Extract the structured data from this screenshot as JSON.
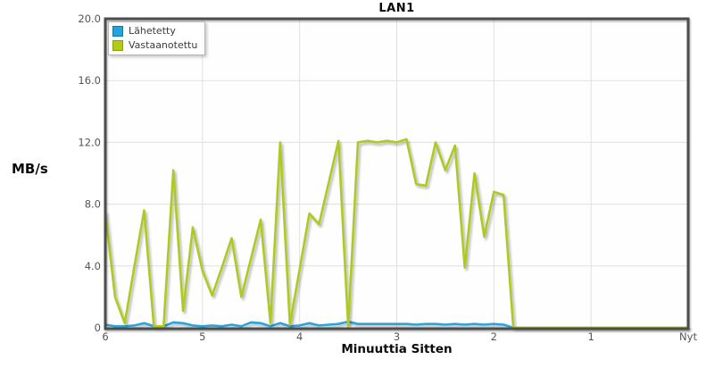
{
  "title": "LAN1",
  "y_axis": {
    "label": "MB/s",
    "tick_labels": [
      "20.0",
      "16.0",
      "12.0",
      "8.0",
      "4.0",
      "0"
    ],
    "tick_values": [
      20,
      16,
      12,
      8,
      4,
      0
    ]
  },
  "x_axis": {
    "label": "Minuuttia Sitten",
    "tick_labels": [
      "6",
      "5",
      "4",
      "3",
      "2",
      "1",
      "Nyt"
    ],
    "tick_values_minutes_ago": [
      6,
      5,
      4,
      3,
      2,
      1,
      0
    ]
  },
  "legend": {
    "items": [
      {
        "label": "Lähetetty",
        "color": "#22a5de",
        "border": "#1377a8"
      },
      {
        "label": "Vastaanotettu",
        "color": "#b2cc16",
        "border": "#86a00e"
      }
    ]
  },
  "colors": {
    "background": "#ffffff",
    "plot_background": "#fefefe",
    "plot_border": "#4d4d4d",
    "gridline": "#e1e1e1",
    "tick_text": "#555555",
    "title_text": "#0a0a0a",
    "sent_line": "#2aa4da",
    "received_line": "#aeca22"
  },
  "chart_data": {
    "type": "line",
    "title": "LAN1",
    "xlabel": "Minuuttia Sitten",
    "ylabel": "MB/s",
    "ylim": [
      0,
      20
    ],
    "xlim_minutes_ago": [
      6,
      0
    ],
    "grid": true,
    "legend_position": "top-left",
    "x_minutes_ago": [
      6.0,
      5.9,
      5.8,
      5.7,
      5.6,
      5.5,
      5.4,
      5.3,
      5.2,
      5.1,
      5.0,
      4.9,
      4.8,
      4.7,
      4.6,
      4.5,
      4.4,
      4.3,
      4.2,
      4.1,
      4.0,
      3.9,
      3.8,
      3.7,
      3.6,
      3.5,
      3.4,
      3.3,
      3.2,
      3.1,
      3.0,
      2.9,
      2.8,
      2.7,
      2.6,
      2.5,
      2.4,
      2.3,
      2.2,
      2.1,
      2.0,
      1.9,
      1.8,
      1.7,
      1.6,
      1.5,
      1.4,
      1.3,
      1.2,
      1.1,
      1.0,
      0.9,
      0.8,
      0.7,
      0.6,
      0.5,
      0.4,
      0.3,
      0.2,
      0.1,
      0.0
    ],
    "series": [
      {
        "name": "Lähetetty",
        "color": "#2aa4da",
        "values": [
          0.2,
          0.1,
          0.1,
          0.15,
          0.3,
          0.1,
          0.1,
          0.35,
          0.3,
          0.15,
          0.1,
          0.15,
          0.1,
          0.2,
          0.1,
          0.35,
          0.3,
          0.1,
          0.3,
          0.1,
          0.15,
          0.3,
          0.15,
          0.2,
          0.25,
          0.4,
          0.25,
          0.25,
          0.25,
          0.25,
          0.25,
          0.25,
          0.2,
          0.25,
          0.25,
          0.2,
          0.25,
          0.2,
          0.25,
          0.2,
          0.25,
          0.2,
          0.0,
          0.0,
          0.0,
          0.0,
          0.0,
          0.0,
          0.0,
          0.0,
          0.0,
          0.0,
          0.0,
          0.0,
          0.0,
          0.0,
          0.0,
          0.0,
          0.0,
          0.0,
          0.0
        ]
      },
      {
        "name": "Vastaanotettu",
        "color": "#aeca22",
        "values": [
          7.5,
          2.0,
          0.3,
          4.0,
          7.6,
          0.1,
          0.1,
          10.2,
          1.1,
          6.5,
          3.7,
          2.1,
          3.9,
          5.8,
          2.0,
          4.5,
          7.0,
          0.3,
          12.0,
          0.2,
          3.8,
          7.4,
          6.7,
          9.4,
          12.1,
          0.1,
          12.0,
          12.1,
          12.0,
          12.1,
          12.0,
          12.2,
          9.3,
          9.2,
          12.0,
          10.2,
          11.8,
          3.9,
          10.0,
          5.9,
          8.8,
          8.6,
          0.0,
          0.0,
          0.0,
          0.0,
          0.0,
          0.0,
          0.0,
          0.0,
          0.0,
          0.0,
          0.0,
          0.0,
          0.0,
          0.0,
          0.0,
          0.0,
          0.0,
          0.0,
          0.0
        ]
      }
    ]
  }
}
